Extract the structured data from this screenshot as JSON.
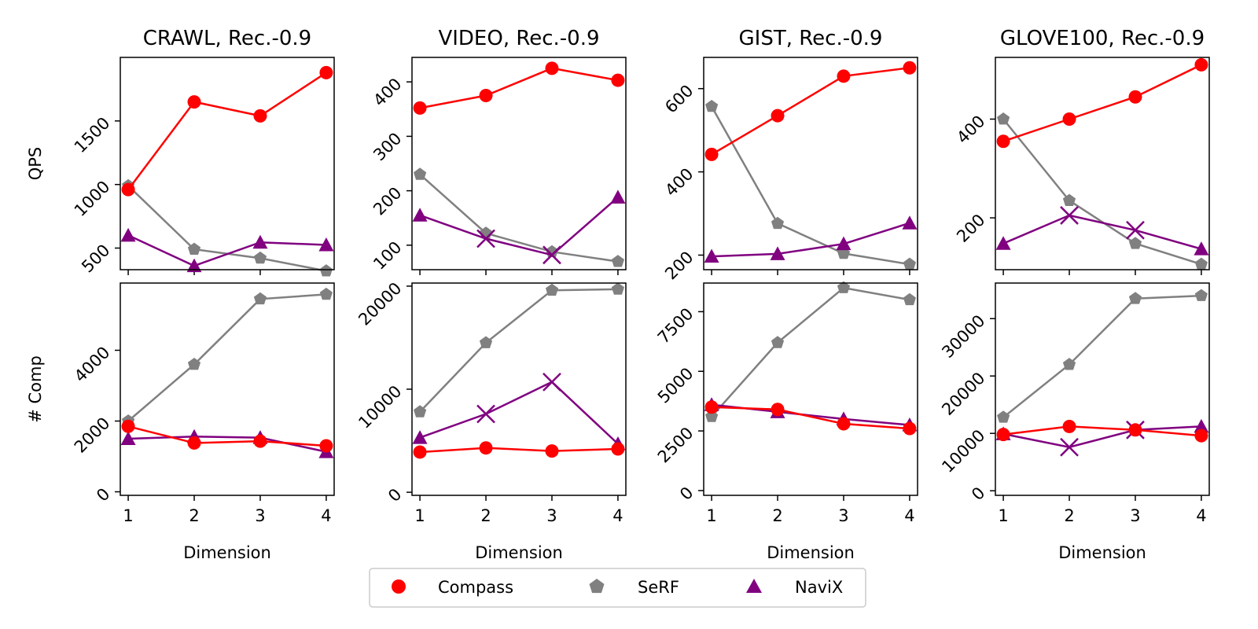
{
  "legend": {
    "entries": [
      {
        "name": "Compass",
        "color": "#ff0000",
        "marker": "circle"
      },
      {
        "name": "SeRF",
        "color": "#808080",
        "marker": "pentagon"
      },
      {
        "name": "NaviX",
        "color": "#800080",
        "marker": "triangle"
      }
    ]
  },
  "chart_data": [
    {
      "type": "line",
      "title": "CRAWL, Rec.-0.9",
      "xlabel": "",
      "ylabel": "QPS",
      "x": [
        1,
        2,
        3,
        4
      ],
      "xlim": [
        0.88,
        4.12
      ],
      "ylim": [
        330,
        2000
      ],
      "yticks": [
        500,
        1000,
        1500
      ],
      "yticklabels": [
        "500",
        "1000",
        "1500"
      ],
      "series": [
        {
          "name": "Compass",
          "values": [
            960,
            1650,
            1540,
            1880
          ]
        },
        {
          "name": "SeRF",
          "values": [
            990,
            490,
            420,
            320
          ]
        },
        {
          "name": "NaviX",
          "values": [
            600,
            360,
            545,
            525
          ],
          "cross_marks": []
        }
      ]
    },
    {
      "type": "line",
      "title": "VIDEO, Rec.-0.9",
      "xlabel": "",
      "ylabel": "",
      "x": [
        1,
        2,
        3,
        4
      ],
      "xlim": [
        0.88,
        4.12
      ],
      "ylim": [
        55,
        445
      ],
      "yticks": [
        100,
        200,
        300,
        400
      ],
      "yticklabels": [
        "100",
        "200",
        "300",
        "400"
      ],
      "series": [
        {
          "name": "Compass",
          "values": [
            352,
            375,
            425,
            403
          ]
        },
        {
          "name": "SeRF",
          "values": [
            230,
            122,
            88,
            70
          ]
        },
        {
          "name": "NaviX",
          "values": [
            155,
            112,
            82,
            188
          ],
          "cross_marks": [
            1,
            2
          ]
        }
      ]
    },
    {
      "type": "line",
      "title": "GIST, Rec.-0.9",
      "xlabel": "",
      "ylabel": "",
      "x": [
        1,
        2,
        3,
        4
      ],
      "xlim": [
        0.88,
        4.12
      ],
      "ylim": [
        165,
        675
      ],
      "yticks": [
        200,
        400,
        600
      ],
      "yticklabels": [
        "200",
        "400",
        "600"
      ],
      "series": [
        {
          "name": "Compass",
          "values": [
            442,
            535,
            630,
            650
          ]
        },
        {
          "name": "SeRF",
          "values": [
            557,
            276,
            204,
            178
          ]
        },
        {
          "name": "NaviX",
          "values": [
            197,
            203,
            227,
            277
          ],
          "cross_marks": []
        }
      ]
    },
    {
      "type": "line",
      "title": "GLOVE100, Rec.-0.9",
      "xlabel": "",
      "ylabel": "",
      "x": [
        1,
        2,
        3,
        4
      ],
      "xlim": [
        0.88,
        4.12
      ],
      "ylim": [
        95,
        525
      ],
      "yticks": [
        200,
        400
      ],
      "yticklabels": [
        "200",
        "400"
      ],
      "series": [
        {
          "name": "Compass",
          "values": [
            355,
            400,
            445,
            510
          ]
        },
        {
          "name": "SeRF",
          "values": [
            400,
            235,
            148,
            106
          ]
        },
        {
          "name": "NaviX",
          "values": [
            148,
            205,
            175,
            137
          ],
          "cross_marks": [
            1,
            2
          ]
        }
      ]
    },
    {
      "type": "line",
      "title": "",
      "xlabel": "Dimension",
      "ylabel": "# Comp",
      "x": [
        1,
        2,
        3,
        4
      ],
      "xlim": [
        0.88,
        4.12
      ],
      "ylim": [
        -100,
        5900
      ],
      "yticks": [
        0,
        2000,
        4000
      ],
      "yticklabels": [
        "0",
        "2000",
        "4000"
      ],
      "series": [
        {
          "name": "Compass",
          "values": [
            1850,
            1380,
            1430,
            1300
          ]
        },
        {
          "name": "SeRF",
          "values": [
            2000,
            3600,
            5450,
            5580
          ]
        },
        {
          "name": "NaviX",
          "values": [
            1500,
            1560,
            1530,
            1130
          ],
          "cross_marks": []
        }
      ]
    },
    {
      "type": "line",
      "title": "",
      "xlabel": "Dimension",
      "ylabel": "",
      "x": [
        1,
        2,
        3,
        4
      ],
      "xlim": [
        0.88,
        4.12
      ],
      "ylim": [
        -300,
        20300
      ],
      "yticks": [
        0,
        10000,
        20000
      ],
      "yticklabels": [
        "0",
        "10000",
        "20000"
      ],
      "series": [
        {
          "name": "Compass",
          "values": [
            3900,
            4300,
            4000,
            4200
          ]
        },
        {
          "name": "SeRF",
          "values": [
            7800,
            14500,
            19600,
            19700
          ]
        },
        {
          "name": "NaviX",
          "values": [
            5300,
            7600,
            10700,
            4700
          ],
          "cross_marks": [
            1,
            2
          ]
        }
      ]
    },
    {
      "type": "line",
      "title": "",
      "xlabel": "Dimension",
      "ylabel": "",
      "x": [
        1,
        2,
        3,
        4
      ],
      "xlim": [
        0.88,
        4.12
      ],
      "ylim": [
        -200,
        8700
      ],
      "yticks": [
        0,
        2500,
        5000,
        7500
      ],
      "yticklabels": [
        "0",
        "2500",
        "5000",
        "7500"
      ],
      "series": [
        {
          "name": "Compass",
          "values": [
            3500,
            3400,
            2800,
            2600
          ]
        },
        {
          "name": "SeRF",
          "values": [
            3100,
            6200,
            8500,
            8000
          ]
        },
        {
          "name": "NaviX",
          "values": [
            3600,
            3300,
            3000,
            2750
          ],
          "cross_marks": []
        }
      ]
    },
    {
      "type": "line",
      "title": "",
      "xlabel": "Dimension",
      "ylabel": "",
      "x": [
        1,
        2,
        3,
        4
      ],
      "xlim": [
        0.88,
        4.12
      ],
      "ylim": [
        -800,
        36200
      ],
      "yticks": [
        0,
        10000,
        20000,
        30000
      ],
      "yticklabels": [
        "0",
        "10000",
        "20000",
        "30000"
      ],
      "series": [
        {
          "name": "Compass",
          "values": [
            9800,
            11200,
            10600,
            9600
          ]
        },
        {
          "name": "SeRF",
          "values": [
            12800,
            22000,
            33500,
            34000
          ]
        },
        {
          "name": "NaviX",
          "values": [
            9900,
            7600,
            10600,
            11200
          ],
          "cross_marks": [
            1,
            2
          ]
        }
      ]
    }
  ]
}
